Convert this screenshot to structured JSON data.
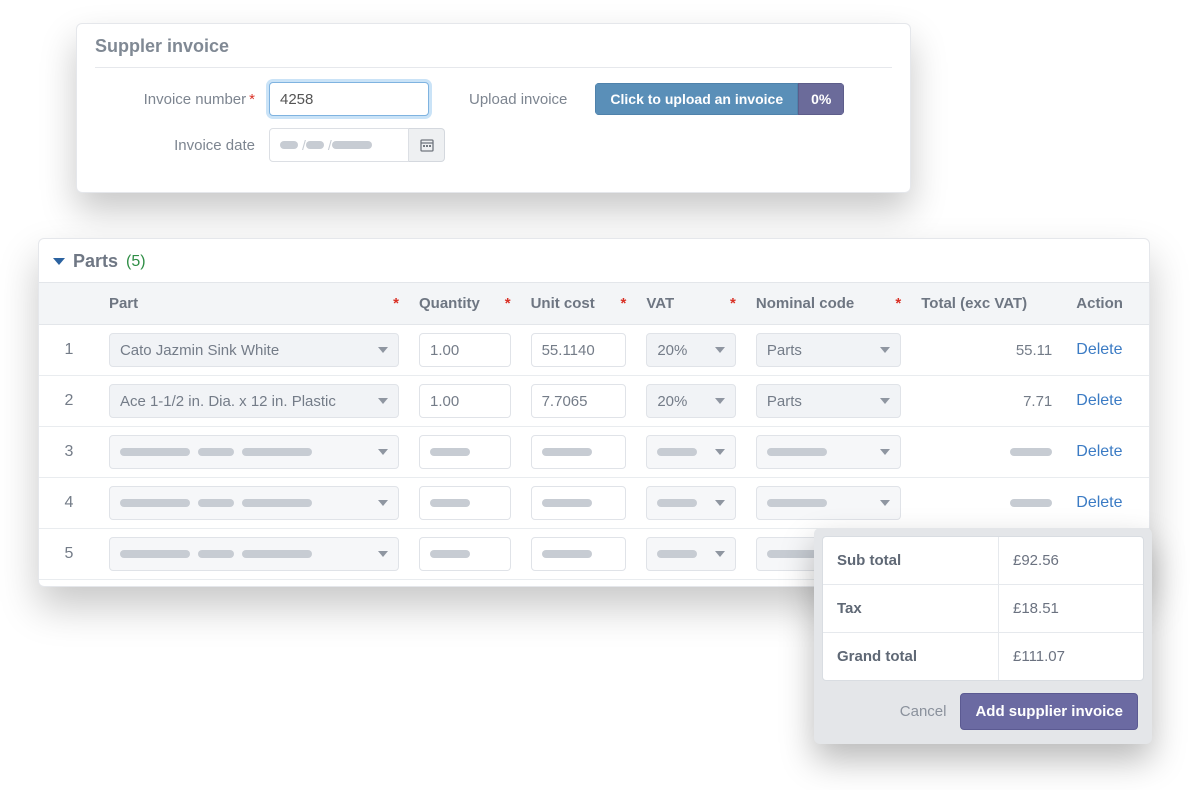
{
  "invoice_panel": {
    "title": "Suppler invoice",
    "number_label": "Invoice number",
    "number_value": "4258",
    "upload_label": "Upload invoice",
    "upload_button": "Click to upload an invoice",
    "upload_pct": "0%",
    "date_label": "Invoice date",
    "date_placeholder_format": "mm/dd/yyyy"
  },
  "parts_panel": {
    "title": "Parts",
    "count": "(5)",
    "columns": {
      "part": "Part",
      "quantity": "Quantity",
      "unit_cost": "Unit cost",
      "vat": "VAT",
      "nominal": "Nominal code",
      "total": "Total (exc VAT)",
      "action": "Action"
    },
    "rows": [
      {
        "idx": "1",
        "part": "Cato Jazmin Sink White",
        "quantity": "1.00",
        "unit_cost": "55.1140",
        "vat": "20%",
        "nominal": "Parts",
        "total": "55.11",
        "action": "Delete"
      },
      {
        "idx": "2",
        "part": "Ace 1-1/2 in. Dia. x 12 in. Plastic",
        "quantity": "1.00",
        "unit_cost": "7.7065",
        "vat": "20%",
        "nominal": "Parts",
        "total": "7.71",
        "action": "Delete"
      },
      {
        "idx": "3",
        "action": "Delete"
      },
      {
        "idx": "4",
        "action": "Delete"
      },
      {
        "idx": "5"
      }
    ]
  },
  "summary": {
    "subtotal_label": "Sub total",
    "subtotal_value": "£92.56",
    "tax_label": "Tax",
    "tax_value": "£18.51",
    "grand_label": "Grand total",
    "grand_value": "£111.07",
    "cancel": "Cancel",
    "submit": "Add supplier invoice"
  },
  "colors": {
    "accent_blue": "#5a8fb8",
    "accent_purple": "#6b6aa2",
    "link": "#3b7bc4",
    "required": "#d93025",
    "count_green": "#2f8e46"
  }
}
